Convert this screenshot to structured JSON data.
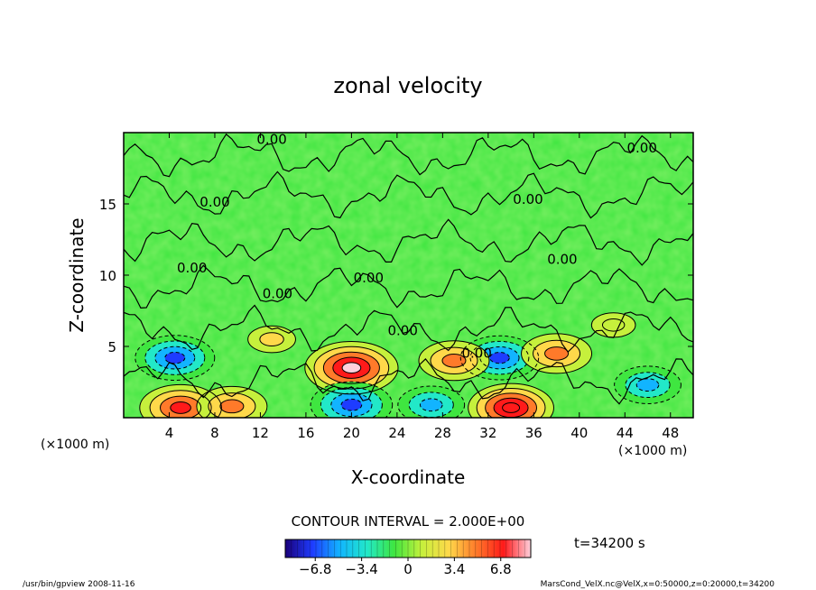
{
  "chart_data": {
    "type": "heatmap",
    "title": "zonal velocity",
    "xlabel": "X-coordinate",
    "ylabel": "Z-coordinate",
    "x_unit": "(×1000 m)",
    "y_unit": "(×1000 m)",
    "xlim": [
      0,
      50
    ],
    "ylim": [
      0,
      20
    ],
    "x_ticks": [
      4,
      8,
      12,
      16,
      20,
      24,
      28,
      32,
      36,
      40,
      44,
      48
    ],
    "y_ticks": [
      5,
      10,
      15
    ],
    "contour_interval": "CONTOUR INTERVAL = 2.000E+00",
    "contour_label": "0.00",
    "time_label": "t=34200 s",
    "colorbar": {
      "range": [
        -9,
        9
      ],
      "ticks": [
        -6.8,
        -3.4,
        0,
        3.4,
        6.8
      ],
      "tick_labels": [
        "−6.8",
        "−3.4",
        "0",
        "3.4",
        "6.8"
      ],
      "colors": [
        "#1a007a",
        "#1e3cff",
        "#12b4ff",
        "#22e8c8",
        "#3fe640",
        "#c6f03c",
        "#ffd84a",
        "#ff7a2a",
        "#ff1a1a",
        "#ffd0dc"
      ]
    },
    "features": [
      {
        "x": 20,
        "z": 3.5,
        "u": 8.0
      },
      {
        "x": 4.5,
        "z": 4.2,
        "u": -6.2
      },
      {
        "x": 5,
        "z": 0.7,
        "u": 6.5
      },
      {
        "x": 9.5,
        "z": 0.8,
        "u": 5.0
      },
      {
        "x": 20,
        "z": 0.9,
        "u": -6.5
      },
      {
        "x": 33,
        "z": 4.2,
        "u": -6.0
      },
      {
        "x": 34,
        "z": 0.7,
        "u": 7.0
      },
      {
        "x": 38,
        "z": 4.5,
        "u": 5.0
      },
      {
        "x": 27,
        "z": 0.9,
        "u": -4.5
      },
      {
        "x": 46,
        "z": 2.3,
        "u": -4.5
      },
      {
        "x": 29,
        "z": 4.0,
        "u": 5.0
      },
      {
        "x": 13,
        "z": 5.5,
        "u": 2.0
      },
      {
        "x": 43,
        "z": 6.5,
        "u": 1.5
      }
    ],
    "grid": false,
    "legend": "bottom-center"
  },
  "footer": {
    "left": "/usr/bin/gpview  2008-11-16",
    "right": "MarsCond_VelX.nc@VelX,x=0:50000,z=0:20000,t=34200"
  },
  "colors": {
    "background": "#ffffff",
    "field_base": "#3fe640",
    "contour": "#000000"
  }
}
